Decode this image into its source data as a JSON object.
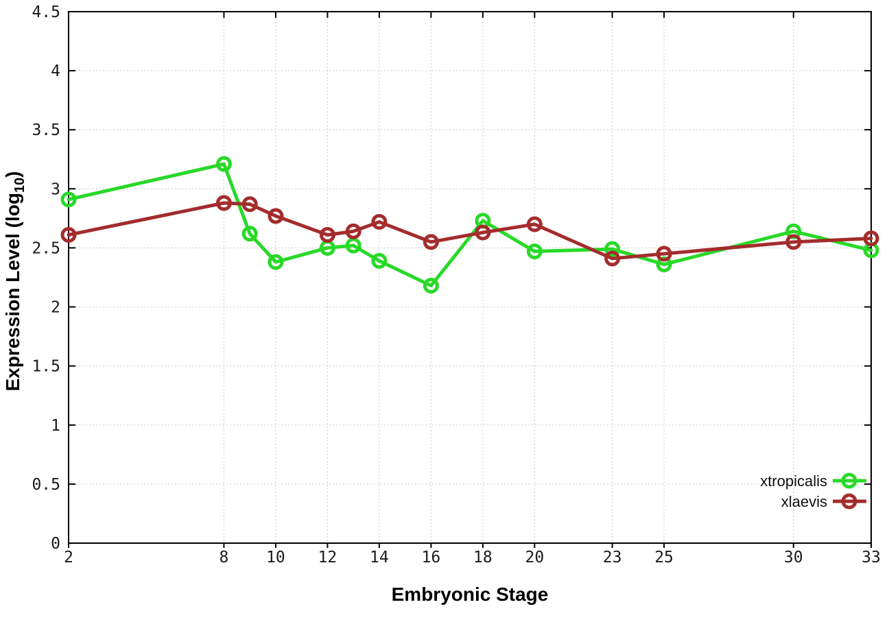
{
  "chart_data": {
    "type": "line",
    "title": "",
    "xlabel": "Embryonic Stage",
    "ylabel": "Expression Level (log10)",
    "ylabel_parts": {
      "main": "Expression Level (log",
      "sub": "10",
      "end": ")"
    },
    "x": [
      2,
      8,
      9,
      10,
      12,
      13,
      14,
      16,
      18,
      20,
      23,
      25,
      30,
      33
    ],
    "series": [
      {
        "name": "xtropicalis",
        "color": "#28d928",
        "values": [
          2.91,
          3.21,
          2.62,
          2.38,
          2.5,
          2.52,
          2.39,
          2.18,
          2.73,
          2.47,
          2.49,
          2.36,
          2.64,
          2.48
        ]
      },
      {
        "name": "xlaevis",
        "color": "#a32c2c",
        "values": [
          2.61,
          2.88,
          2.87,
          2.77,
          2.61,
          2.64,
          2.72,
          2.55,
          2.63,
          2.7,
          2.41,
          2.45,
          2.55,
          2.58
        ]
      }
    ],
    "xlim": [
      2,
      33
    ],
    "ylim": [
      0,
      4.5
    ],
    "x_ticks": [
      {
        "v": 2,
        "label": "2"
      },
      {
        "v": 8,
        "label": "8"
      },
      {
        "v": 10,
        "label": "10"
      },
      {
        "v": 12,
        "label": "12"
      },
      {
        "v": 14,
        "label": "14"
      },
      {
        "v": 16,
        "label": "16"
      },
      {
        "v": 18,
        "label": "18"
      },
      {
        "v": 20,
        "label": "20"
      },
      {
        "v": 23,
        "label": "23"
      },
      {
        "v": 25,
        "label": "25"
      },
      {
        "v": 30,
        "label": "30"
      },
      {
        "v": 33,
        "label": "33"
      }
    ],
    "y_ticks": [
      {
        "v": 0,
        "label": "0"
      },
      {
        "v": 0.5,
        "label": "0.5"
      },
      {
        "v": 1,
        "label": "1"
      },
      {
        "v": 1.5,
        "label": "1.5"
      },
      {
        "v": 2,
        "label": "2"
      },
      {
        "v": 2.5,
        "label": "2.5"
      },
      {
        "v": 3,
        "label": "3"
      },
      {
        "v": 3.5,
        "label": "3.5"
      },
      {
        "v": 4,
        "label": "4"
      },
      {
        "v": 4.5,
        "label": "4.5"
      }
    ],
    "grid": true,
    "legend_position": "bottom-right",
    "marker": "open-circle",
    "colors": {
      "background": "#ffffff",
      "border": "#000000",
      "grid": "#c8c8c8",
      "tick_text": "#1a1a1a"
    }
  }
}
